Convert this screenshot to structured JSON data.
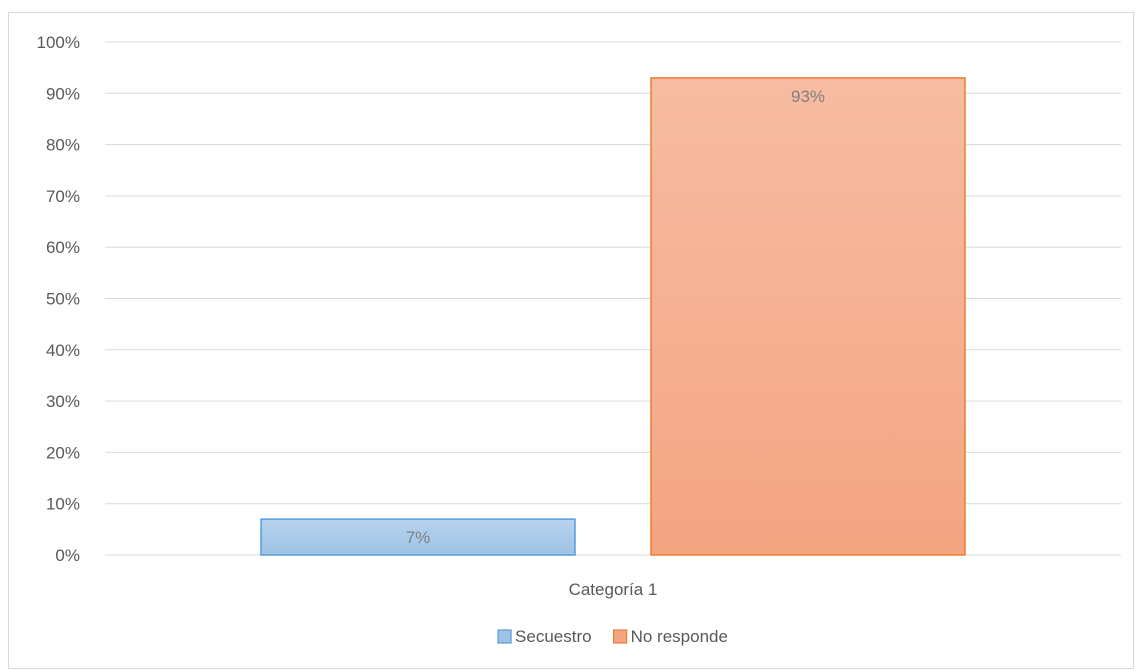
{
  "chart_data": {
    "type": "bar",
    "categories": [
      "Categoría 1"
    ],
    "series": [
      {
        "name": "Secuestro",
        "values": [
          7
        ],
        "label": "7%",
        "color": "#9dc3e6",
        "color_top": "#b6d2ee",
        "border": "#5b9bd5"
      },
      {
        "name": "No responde",
        "values": [
          93
        ],
        "label": "93%",
        "color": "#f4a582",
        "color_top": "#f7bca3",
        "border": "#ed7d31"
      }
    ],
    "ylim": [
      0,
      100
    ],
    "yticks": [
      "0%",
      "10%",
      "20%",
      "30%",
      "40%",
      "50%",
      "60%",
      "70%",
      "80%",
      "90%",
      "100%"
    ],
    "grid": true,
    "legend_position": "bottom"
  }
}
